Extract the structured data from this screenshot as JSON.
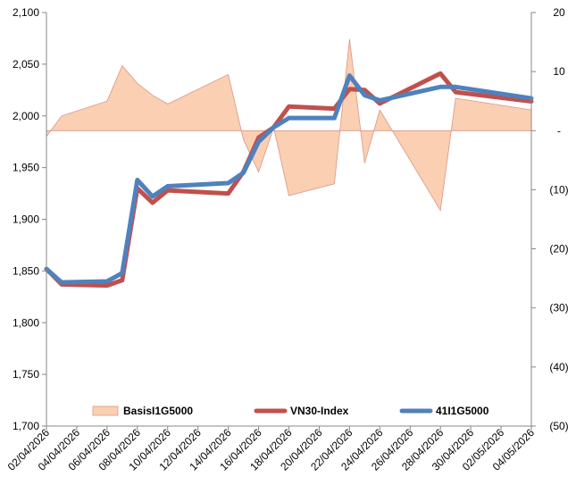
{
  "chart_data": {
    "type": "line",
    "dates": [
      "02/04/2026",
      "03/04/2026",
      "06/04/2026",
      "07/04/2026",
      "08/04/2026",
      "09/04/2026",
      "10/04/2026",
      "14/04/2026",
      "15/04/2026",
      "16/04/2026",
      "17/04/2026",
      "18/04/2026",
      "21/04/2026",
      "22/04/2026",
      "23/04/2026",
      "24/04/2026",
      "28/04/2026",
      "29/04/2026",
      "04/05/2026"
    ],
    "x_ticks": [
      "02/04/2026",
      "04/04/2026",
      "06/04/2026",
      "08/04/2026",
      "10/04/2026",
      "12/04/2026",
      "14/04/2026",
      "16/04/2026",
      "18/04/2026",
      "20/04/2026",
      "22/04/2026",
      "24/04/2026",
      "26/04/2026",
      "28/04/2026",
      "30/04/2026",
      "02/05/2026",
      "04/05/2026"
    ],
    "y_left": {
      "min": 1700,
      "max": 2100,
      "ticks": [
        "1,700",
        "1,750",
        "1,800",
        "1,850",
        "1,900",
        "1,950",
        "2,000",
        "2,050",
        "2,100"
      ]
    },
    "y_right": {
      "min": -50,
      "max": 20,
      "ticks": [
        "(50)",
        "(40)",
        "(30)",
        "(20)",
        "(10)",
        "-",
        "10",
        "20"
      ]
    },
    "series": [
      {
        "name": "BasisI1G5000",
        "kind": "area",
        "axis": "right",
        "color": "#fbcfb1",
        "stroke": "#d9968a",
        "values": [
          -1.0,
          2.5,
          5.0,
          11.0,
          8.0,
          6.0,
          4.5,
          9.5,
          -1.5,
          -7.0,
          0.5,
          -11.0,
          -9.0,
          15.5,
          -5.5,
          3.5,
          -13.5,
          5.5,
          3.5
        ]
      },
      {
        "name": "VN30-Index",
        "kind": "line",
        "axis": "left",
        "color": "#c0504d",
        "values": [
          1852,
          1837,
          1836,
          1841,
          1930,
          1916,
          1928,
          1925,
          1946,
          1979,
          1989,
          2009,
          2007,
          2026,
          2025,
          2012,
          2041,
          2023,
          2014
        ]
      },
      {
        "name": "41I1G5000",
        "kind": "line",
        "axis": "left",
        "color": "#4f81bd",
        "values": [
          1852,
          1839,
          1840,
          1848,
          1938,
          1922,
          1932,
          1935,
          1945,
          1975,
          1989,
          1998,
          1998,
          2039,
          2020,
          2015,
          2028,
          2028,
          2017
        ]
      }
    ],
    "legend": {
      "position": "bottom-inside",
      "entries": [
        "BasisI1G5000",
        "VN30-Index",
        "41I1G5000"
      ]
    },
    "grid": false
  }
}
